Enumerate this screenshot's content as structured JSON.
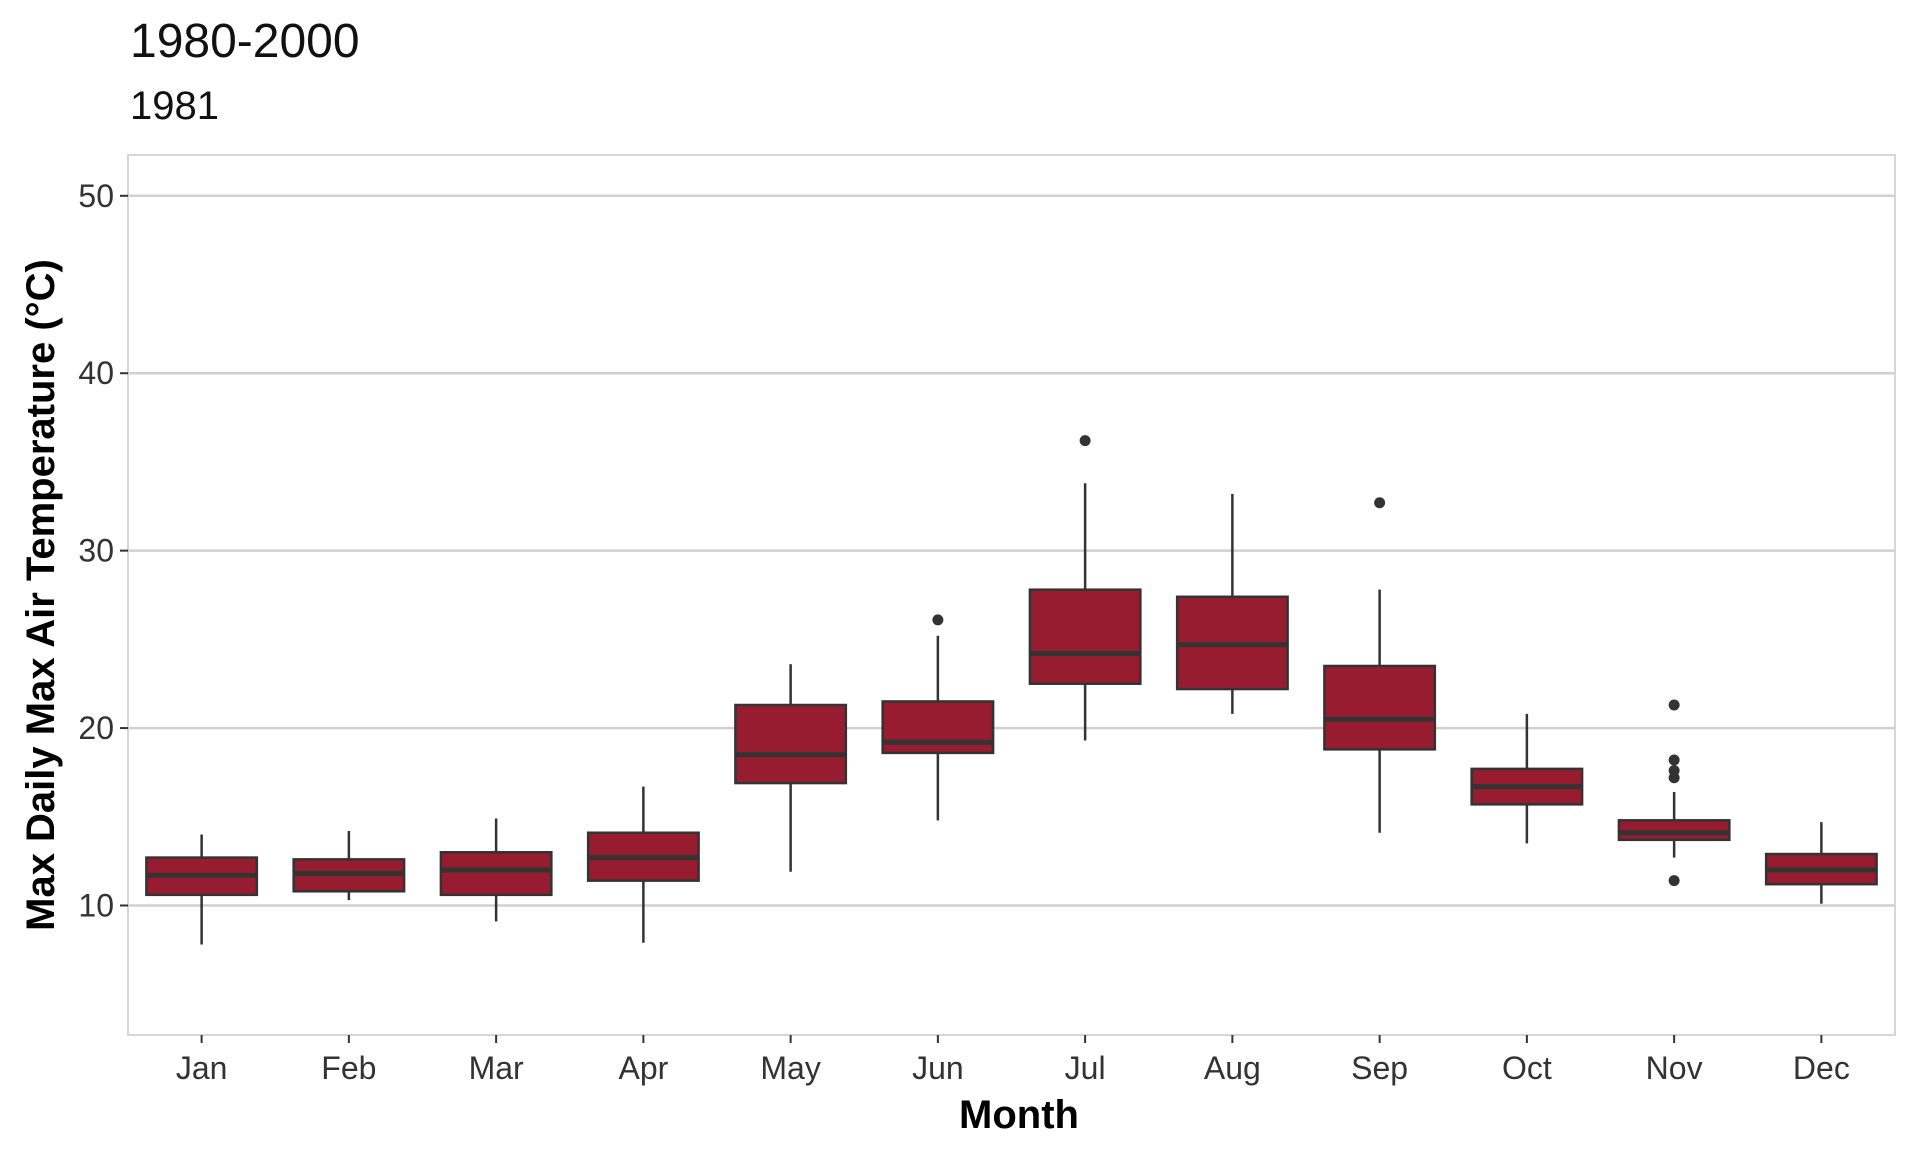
{
  "chart_data": {
    "type": "box",
    "title": "1980-2000",
    "subtitle": "1981",
    "xlabel": "Month",
    "ylabel": "Max Daily Max Air Temperature (°C)",
    "ylim": [
      2.7,
      52.3
    ],
    "yticks": [
      10,
      20,
      30,
      40,
      50
    ],
    "grid": "horizontal",
    "colors": {
      "box_fill": "#971C2F",
      "box_line": "#333333",
      "grid": "#D0D0D0",
      "panel_border": "#D6D6D6"
    },
    "categories": [
      "Jan",
      "Feb",
      "Mar",
      "Apr",
      "May",
      "Jun",
      "Jul",
      "Aug",
      "Sep",
      "Oct",
      "Nov",
      "Dec"
    ],
    "boxes": [
      {
        "month": "Jan",
        "lower_whisker": 7.8,
        "q1": 10.6,
        "median": 11.7,
        "q3": 12.7,
        "upper_whisker": 14.0,
        "outliers": []
      },
      {
        "month": "Feb",
        "lower_whisker": 10.3,
        "q1": 10.8,
        "median": 11.8,
        "q3": 12.6,
        "upper_whisker": 14.2,
        "outliers": []
      },
      {
        "month": "Mar",
        "lower_whisker": 9.1,
        "q1": 10.6,
        "median": 12.0,
        "q3": 13.0,
        "upper_whisker": 14.9,
        "outliers": []
      },
      {
        "month": "Apr",
        "lower_whisker": 7.9,
        "q1": 11.4,
        "median": 12.7,
        "q3": 14.1,
        "upper_whisker": 16.7,
        "outliers": []
      },
      {
        "month": "May",
        "lower_whisker": 11.9,
        "q1": 16.9,
        "median": 18.5,
        "q3": 21.3,
        "upper_whisker": 23.6,
        "outliers": []
      },
      {
        "month": "Jun",
        "lower_whisker": 14.8,
        "q1": 18.6,
        "median": 19.2,
        "q3": 21.5,
        "upper_whisker": 25.2,
        "outliers": [
          26.1
        ]
      },
      {
        "month": "Jul",
        "lower_whisker": 19.3,
        "q1": 22.5,
        "median": 24.2,
        "q3": 27.8,
        "upper_whisker": 33.8,
        "outliers": [
          36.2
        ]
      },
      {
        "month": "Aug",
        "lower_whisker": 20.8,
        "q1": 22.2,
        "median": 24.7,
        "q3": 27.4,
        "upper_whisker": 33.2,
        "outliers": []
      },
      {
        "month": "Sep",
        "lower_whisker": 14.1,
        "q1": 18.8,
        "median": 20.5,
        "q3": 23.5,
        "upper_whisker": 27.8,
        "outliers": [
          32.7
        ]
      },
      {
        "month": "Oct",
        "lower_whisker": 13.5,
        "q1": 15.7,
        "median": 16.7,
        "q3": 17.7,
        "upper_whisker": 20.8,
        "outliers": []
      },
      {
        "month": "Nov",
        "lower_whisker": 12.7,
        "q1": 13.7,
        "median": 14.1,
        "q3": 14.8,
        "upper_whisker": 16.4,
        "outliers": [
          21.3,
          18.2,
          17.6,
          17.2,
          11.4
        ]
      },
      {
        "month": "Dec",
        "lower_whisker": 10.1,
        "q1": 11.2,
        "median": 12.0,
        "q3": 12.9,
        "upper_whisker": 14.7,
        "outliers": []
      }
    ]
  }
}
